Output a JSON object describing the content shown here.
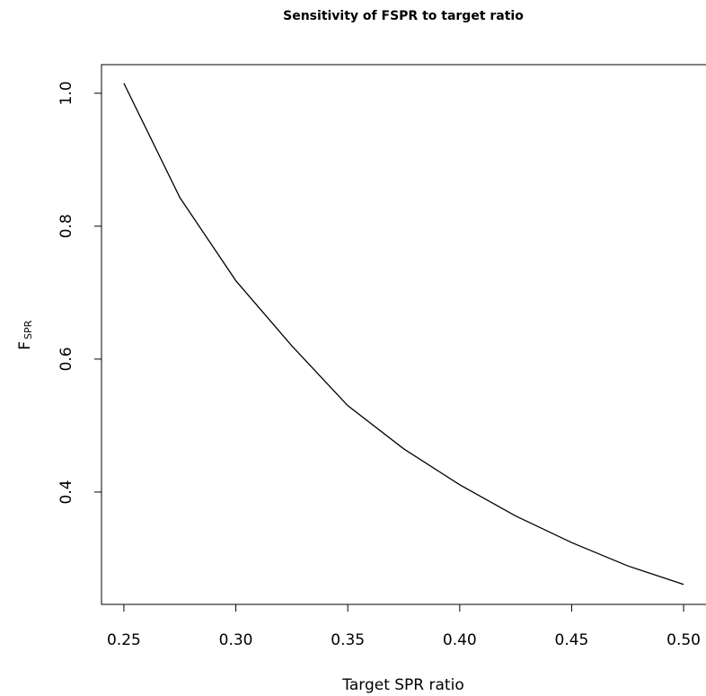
{
  "chart_data": {
    "type": "line",
    "title": "Sensitivity of FSPR to target ratio",
    "x_label": "Target SPR ratio",
    "y_label": "F",
    "y_label_subscript": "SPR",
    "x": [
      0.25,
      0.275,
      0.3,
      0.325,
      0.35,
      0.375,
      0.4,
      0.425,
      0.45,
      0.475,
      0.5
    ],
    "values": [
      1.015,
      0.843,
      0.718,
      0.62,
      0.53,
      0.465,
      0.411,
      0.364,
      0.324,
      0.289,
      0.261
    ],
    "color": "#000000",
    "xlim": [
      0.24,
      0.51
    ],
    "ylim": [
      0.231,
      1.043
    ],
    "xticks": [
      0.25,
      {
        "value": 0.3,
        "label": "0.30"
      },
      0.35,
      {
        "value": 0.4,
        "label": "0.40"
      },
      0.45,
      {
        "value": 0.5,
        "label": "0.50"
      }
    ],
    "yticks": [
      0.4,
      0.6,
      0.8,
      {
        "value": 1,
        "label": "1.0"
      }
    ]
  }
}
